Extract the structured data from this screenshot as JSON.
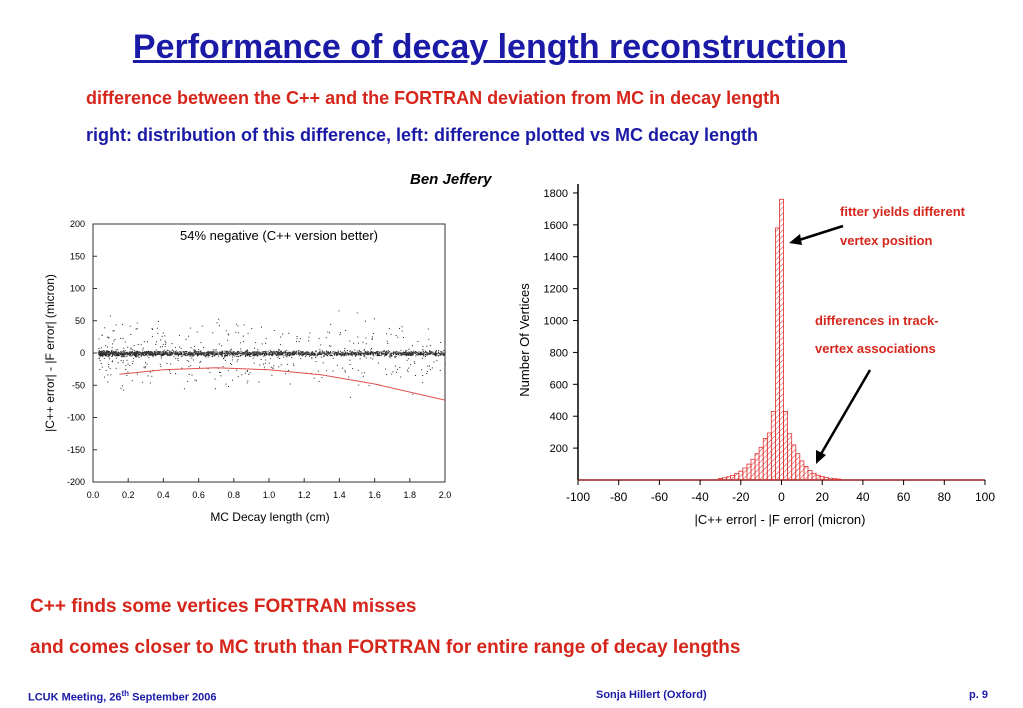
{
  "slide": {
    "title": "Performance of decay length reconstruction",
    "subtitle_1": "difference between the C++ and the FORTRAN deviation from MC in decay length",
    "subtitle_2": "right: distribution of this difference, left: difference plotted vs MC decay length",
    "author": "Ben Jeffery",
    "bullet_1": "C++ finds some vertices FORTRAN misses",
    "bullet_2": "and comes closer to MC truth than FORTRAN for entire range of decay lengths",
    "footer": {
      "left_pre": "LCUK Meeting, 26",
      "left_sup": "th",
      "left_post": " September 2006",
      "center": "Sonja Hillert (Oxford)",
      "right": "p. 9"
    },
    "colors": {
      "title": "#1a1aa6",
      "accent": "#d6261b",
      "histogram": "#e03030"
    }
  },
  "chart_data": [
    {
      "type": "scatter",
      "xlabel": "MC Decay length (cm)",
      "ylabel": "|C++ error| - |F error| (micron)",
      "xlim": [
        0,
        2.0
      ],
      "ylim": [
        -200,
        200
      ],
      "xticks": [
        "0.0",
        "0.2",
        "0.4",
        "0.6",
        "0.8",
        "1.0",
        "1.2",
        "1.4",
        "1.6",
        "1.8",
        "2.0"
      ],
      "yticks": [
        "200",
        "150",
        "100",
        "50",
        "0",
        "-50",
        "-100",
        "-150",
        "-200"
      ],
      "annotation": "54% negative (C++ version better)",
      "points_description": "dense band of points around y=0, spread over x 0 to 2.0",
      "fit_curve": {
        "x": [
          0.15,
          0.4,
          0.7,
          1.0,
          1.3,
          1.6,
          2.0
        ],
        "y": [
          -33,
          -26,
          -23,
          -26,
          -34,
          -48,
          -73
        ]
      },
      "grid": false
    },
    {
      "type": "bar",
      "xlabel": "|C++ error| - |F error| (micron)",
      "ylabel": "Number Of Vertices",
      "xlim": [
        -100,
        100
      ],
      "ylim": [
        0,
        1900
      ],
      "xticks": [
        "-100",
        "-80",
        "-60",
        "-40",
        "-20",
        "0",
        "20",
        "40",
        "60",
        "80",
        "100"
      ],
      "yticks": [
        "1800",
        "1600",
        "1400",
        "1200",
        "1000",
        "800",
        "600",
        "400",
        "200"
      ],
      "bin_width": 2,
      "bins": [
        {
          "x": -30,
          "value": 10
        },
        {
          "x": -28,
          "value": 14
        },
        {
          "x": -26,
          "value": 20
        },
        {
          "x": -24,
          "value": 28
        },
        {
          "x": -22,
          "value": 40
        },
        {
          "x": -20,
          "value": 55
        },
        {
          "x": -18,
          "value": 75
        },
        {
          "x": -16,
          "value": 100
        },
        {
          "x": -14,
          "value": 130
        },
        {
          "x": -12,
          "value": 165
        },
        {
          "x": -10,
          "value": 205
        },
        {
          "x": -8,
          "value": 260
        },
        {
          "x": -6,
          "value": 295
        },
        {
          "x": -4,
          "value": 430
        },
        {
          "x": -2,
          "value": 1580
        },
        {
          "x": 0,
          "value": 1760
        },
        {
          "x": 2,
          "value": 430
        },
        {
          "x": 4,
          "value": 290
        },
        {
          "x": 6,
          "value": 220
        },
        {
          "x": 8,
          "value": 165
        },
        {
          "x": 10,
          "value": 120
        },
        {
          "x": 12,
          "value": 85
        },
        {
          "x": 14,
          "value": 60
        },
        {
          "x": 16,
          "value": 42
        },
        {
          "x": 18,
          "value": 30
        },
        {
          "x": 20,
          "value": 22
        },
        {
          "x": 22,
          "value": 15
        },
        {
          "x": 24,
          "value": 11
        },
        {
          "x": 26,
          "value": 8
        },
        {
          "x": 28,
          "value": 6
        }
      ],
      "annotations": [
        {
          "text_1": "fitter yields different",
          "text_2": "vertex position"
        },
        {
          "text_1": "differences in track-",
          "text_2": "vertex associations"
        }
      ],
      "grid": false
    }
  ]
}
